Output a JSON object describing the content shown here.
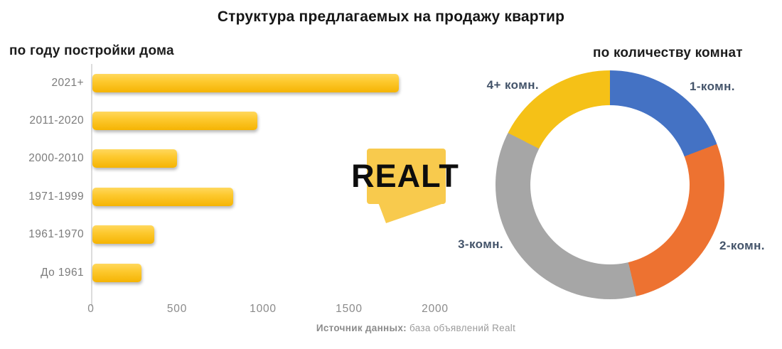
{
  "title": "Структура предлагаемых на продажу квартир",
  "logo": {
    "text": "Realt",
    "bubble_color": "#f8ca4d"
  },
  "footer": {
    "label": "Источник данных:",
    "text": " база объявлений Realt"
  },
  "colors": {
    "bar_yellow": "#FBBF17",
    "donut_blue": "#4472C4",
    "donut_orange": "#ED7231",
    "donut_gray": "#A6A6A6",
    "donut_yellow": "#F5C117",
    "label_slate": "#44546A",
    "axis_text_gray": "#8A8A8A"
  },
  "chart_data": [
    {
      "type": "bar",
      "orientation": "horizontal",
      "title": "по году постройки дома",
      "categories": [
        "2021+",
        "2011-2020",
        "2000-2010",
        "1971-1999",
        "1961-1970",
        "До 1961"
      ],
      "values": [
        1780,
        960,
        490,
        820,
        360,
        285
      ],
      "xlim": [
        0,
        2000
      ],
      "xticks": [
        "0",
        "500",
        "1000",
        "1500",
        "2000"
      ],
      "bar_color": "#FBBF17",
      "grid": false,
      "legend": "none"
    },
    {
      "type": "pie",
      "donut": true,
      "title": "по количеству комнат",
      "start_angle_deg": 0,
      "clockwise": true,
      "legend_position": "around",
      "series": [
        {
          "name": "1-комн.",
          "percent": 19.2,
          "color": "#4472C4"
        },
        {
          "name": "2-комн.",
          "percent": 27.1,
          "color": "#ED7231"
        },
        {
          "name": "3-комн.",
          "percent": 36.2,
          "color": "#A6A6A6"
        },
        {
          "name": "4+ комн.",
          "percent": 17.5,
          "color": "#F5C117"
        }
      ]
    }
  ]
}
